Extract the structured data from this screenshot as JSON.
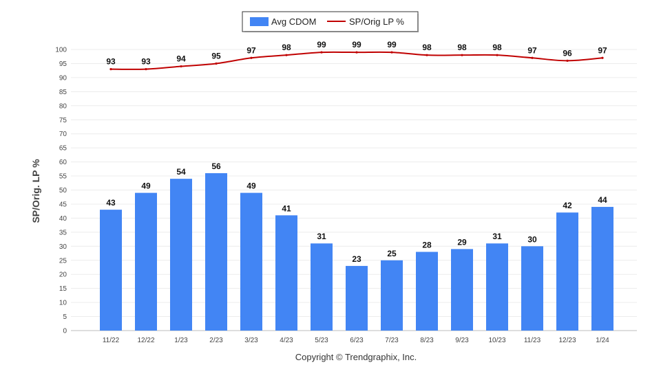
{
  "chart_data": {
    "type": "bar",
    "categories": [
      "11/22",
      "12/22",
      "1/23",
      "2/23",
      "3/23",
      "4/23",
      "5/23",
      "6/23",
      "7/23",
      "8/23",
      "9/23",
      "10/23",
      "11/23",
      "12/23",
      "1/24"
    ],
    "series": [
      {
        "name": "Avg CDOM",
        "type": "bar",
        "color": "#4285F4",
        "values": [
          43,
          49,
          54,
          56,
          49,
          41,
          31,
          23,
          25,
          28,
          29,
          31,
          30,
          42,
          44
        ]
      },
      {
        "name": "SP/Orig LP %",
        "type": "line",
        "color": "#C00000",
        "values": [
          93,
          93,
          94,
          95,
          97,
          98,
          99,
          99,
          99,
          98,
          98,
          98,
          97,
          96,
          97
        ]
      }
    ],
    "ylabel": "SP/Orig. LP %",
    "ylim": [
      0,
      100
    ],
    "yticks": [
      0,
      5,
      10,
      15,
      20,
      25,
      30,
      35,
      40,
      45,
      50,
      55,
      60,
      65,
      70,
      75,
      80,
      85,
      90,
      95,
      100
    ],
    "grid": true,
    "legend_position": "top-center"
  },
  "footer": {
    "copyright": "Copyright © Trendgraphix, Inc."
  }
}
